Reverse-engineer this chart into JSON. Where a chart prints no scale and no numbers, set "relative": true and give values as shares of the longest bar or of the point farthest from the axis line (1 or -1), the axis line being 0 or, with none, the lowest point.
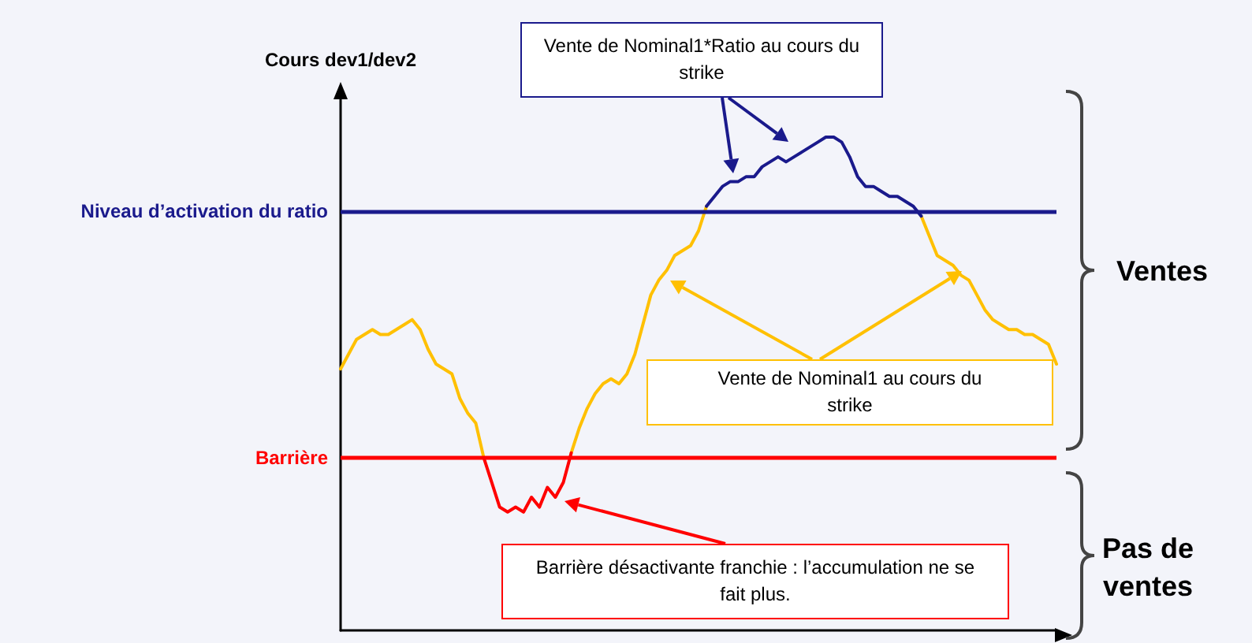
{
  "chart_data": {
    "type": "line",
    "relative": true,
    "ylabel": "Cours dev1/dev2",
    "grid": false,
    "line_style": "solid",
    "categories": [
      null,
      null,
      null,
      null,
      null,
      null,
      null,
      null,
      null,
      null,
      null,
      null,
      null,
      null,
      null,
      null,
      null,
      null,
      null,
      null,
      null,
      null,
      null,
      null,
      null,
      null,
      null,
      null,
      null,
      null,
      null,
      null,
      null,
      null,
      null,
      null,
      null,
      null,
      null,
      null,
      null,
      null,
      null,
      null,
      null,
      null,
      null,
      null,
      null,
      null,
      null,
      null,
      null,
      null,
      null,
      null,
      null,
      null,
      null,
      null,
      null,
      null,
      null,
      null,
      null,
      null,
      null,
      null,
      null,
      null,
      null,
      null,
      null,
      null,
      null,
      null,
      null,
      null,
      null,
      null,
      null,
      null,
      null,
      null,
      null,
      null,
      null,
      null,
      null,
      null,
      null
    ],
    "series": [
      {
        "color": "#ffc000",
        "values": [
          0.53,
          0.56,
          0.59,
          0.6,
          0.61,
          0.6,
          0.6,
          0.61,
          0.62,
          0.63,
          0.61,
          0.57,
          0.54,
          0.53,
          0.52,
          0.47,
          0.44,
          0.42,
          0.35,
          null,
          null,
          null,
          null,
          null,
          null,
          null,
          null,
          null,
          null,
          0.36,
          0.41,
          0.45,
          0.48,
          0.5,
          0.51,
          0.5,
          0.52,
          0.56,
          0.62,
          0.68,
          0.71,
          0.73,
          0.76,
          0.77,
          0.78,
          0.81,
          0.86,
          null,
          null,
          null,
          null,
          null,
          null,
          null,
          null,
          null,
          null,
          null,
          null,
          null,
          null,
          null,
          null,
          null,
          null,
          null,
          null,
          null,
          null,
          null,
          null,
          null,
          null,
          0.84,
          0.8,
          0.76,
          0.75,
          0.74,
          0.72,
          0.71,
          0.68,
          0.65,
          0.63,
          0.62,
          0.61,
          0.61,
          0.6,
          0.6,
          0.59,
          0.58,
          0.54
        ]
      },
      {
        "color": "#1a1a8c",
        "values": [
          null,
          null,
          null,
          null,
          null,
          null,
          null,
          null,
          null,
          null,
          null,
          null,
          null,
          null,
          null,
          null,
          null,
          null,
          null,
          null,
          null,
          null,
          null,
          null,
          null,
          null,
          null,
          null,
          null,
          null,
          null,
          null,
          null,
          null,
          null,
          null,
          null,
          null,
          null,
          null,
          null,
          null,
          null,
          null,
          null,
          null,
          0.86,
          0.88,
          0.9,
          0.91,
          0.91,
          0.92,
          0.92,
          0.94,
          0.95,
          0.96,
          0.95,
          0.96,
          0.97,
          0.98,
          0.99,
          1.0,
          1.0,
          0.99,
          0.96,
          0.92,
          0.9,
          0.9,
          0.89,
          0.88,
          0.88,
          0.87,
          0.86,
          0.84,
          null,
          null,
          null,
          null,
          null,
          null,
          null,
          null,
          null,
          null,
          null,
          null,
          null,
          null,
          null,
          null,
          null
        ]
      },
      {
        "color": "#ff0000",
        "values": [
          null,
          null,
          null,
          null,
          null,
          null,
          null,
          null,
          null,
          null,
          null,
          null,
          null,
          null,
          null,
          null,
          null,
          null,
          0.35,
          0.3,
          0.25,
          0.24,
          0.25,
          0.24,
          0.27,
          0.25,
          0.29,
          0.27,
          0.3,
          0.36,
          null,
          null,
          null,
          null,
          null,
          null,
          null,
          null,
          null,
          null,
          null,
          null,
          null,
          null,
          null,
          null,
          null,
          null,
          null,
          null,
          null,
          null,
          null,
          null,
          null,
          null,
          null,
          null,
          null,
          null,
          null,
          null,
          null,
          null,
          null,
          null,
          null,
          null,
          null,
          null,
          null,
          null,
          null,
          null,
          null,
          null,
          null,
          null,
          null,
          null,
          null,
          null,
          null,
          null,
          null,
          null,
          null,
          null,
          null,
          null,
          null
        ]
      }
    ],
    "ref_lines": [
      {
        "axis": "y",
        "value": 0.85,
        "label": "Niveau d’activation du ratio",
        "color": "#1a1a8c"
      },
      {
        "axis": "y",
        "value": 0.35,
        "label": "Barrière",
        "color": "#ff0000"
      }
    ],
    "annotations": [
      "Vente de Nominal1*Ratio au cours du strike",
      "Vente de Nominal1 au cours du strike",
      "Barrière désactivante franchie : l’accumulation ne se fait plus.",
      "Ventes",
      "Pas de ventes"
    ]
  }
}
